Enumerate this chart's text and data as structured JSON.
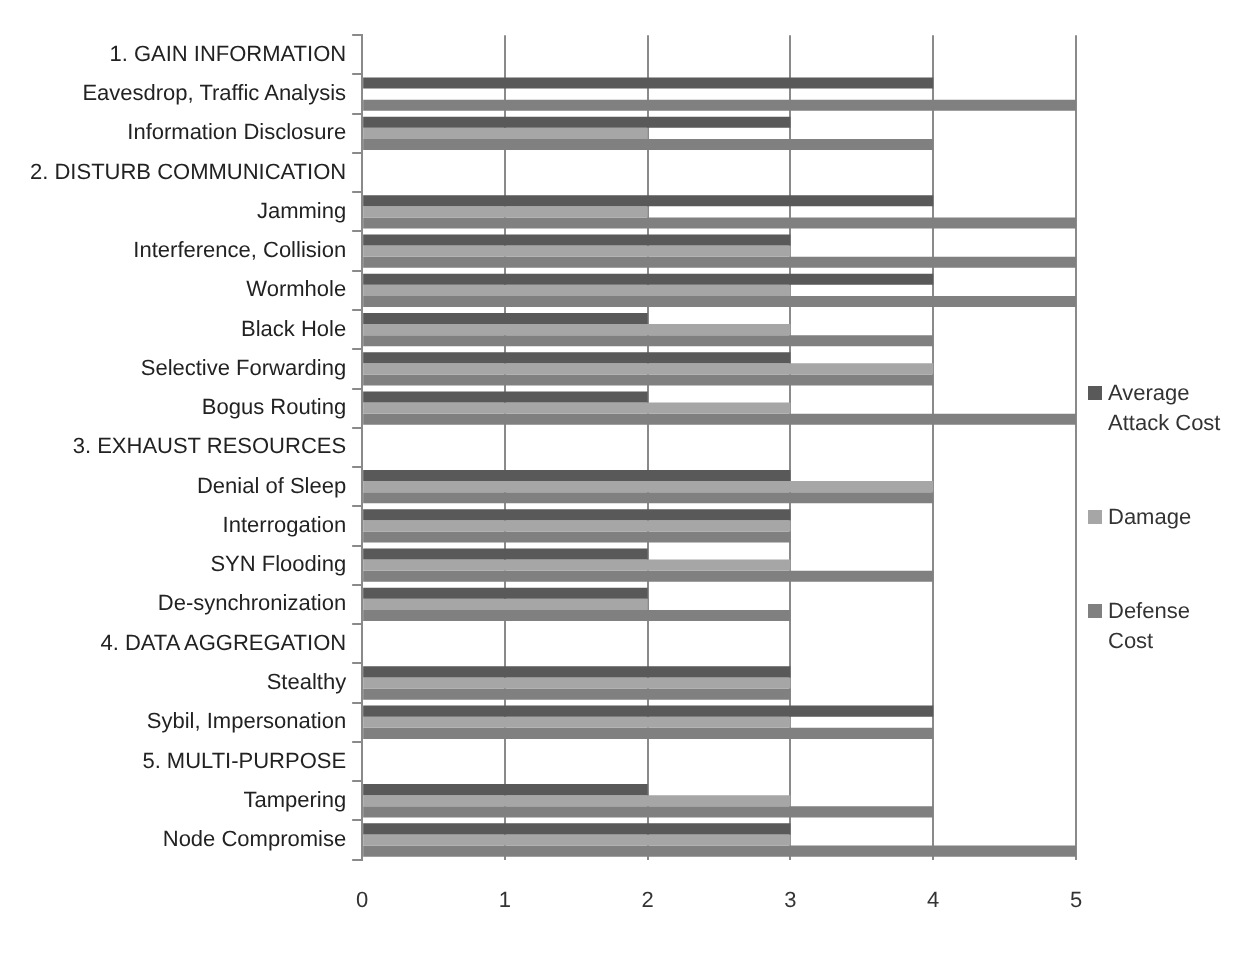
{
  "chart_data": {
    "type": "bar",
    "orientation": "horizontal",
    "categories": [
      "1. GAIN INFORMATION",
      "Eavesdrop, Traffic Analysis",
      "Information Disclosure",
      "2. DISTURB COMMUNICATION",
      "Jamming",
      "Interference, Collision",
      "Wormhole",
      "Black Hole",
      "Selective Forwarding",
      "Bogus Routing",
      "3. EXHAUST RESOURCES",
      "Denial of Sleep",
      "Interrogation",
      "SYN Flooding",
      "De-synchronization",
      "4. DATA AGGREGATION",
      "Stealthy",
      "Sybil, Impersonation",
      "5. MULTI-PURPOSE",
      "Tampering",
      "Node Compromise"
    ],
    "series": [
      {
        "name": "Average Attack Cost",
        "color": "#595959",
        "values": [
          null,
          4,
          3,
          null,
          4,
          3,
          4,
          2,
          3,
          2,
          null,
          3,
          3,
          2,
          2,
          null,
          3,
          4,
          null,
          2,
          3
        ]
      },
      {
        "name": "Damage",
        "color": "#a6a6a6",
        "values": [
          null,
          0,
          2,
          null,
          2,
          3,
          3,
          3,
          4,
          3,
          null,
          4,
          3,
          3,
          2,
          null,
          3,
          3,
          null,
          3,
          3
        ]
      },
      {
        "name": "Defense Cost",
        "color": "#808080",
        "values": [
          null,
          5,
          4,
          null,
          5,
          5,
          5,
          4,
          4,
          5,
          null,
          4,
          3,
          4,
          3,
          null,
          3,
          4,
          null,
          4,
          5
        ]
      }
    ],
    "xlim": [
      0,
      5
    ],
    "xticks": [
      0,
      1,
      2,
      3,
      4,
      5
    ],
    "grid": "x",
    "legend": "right"
  }
}
